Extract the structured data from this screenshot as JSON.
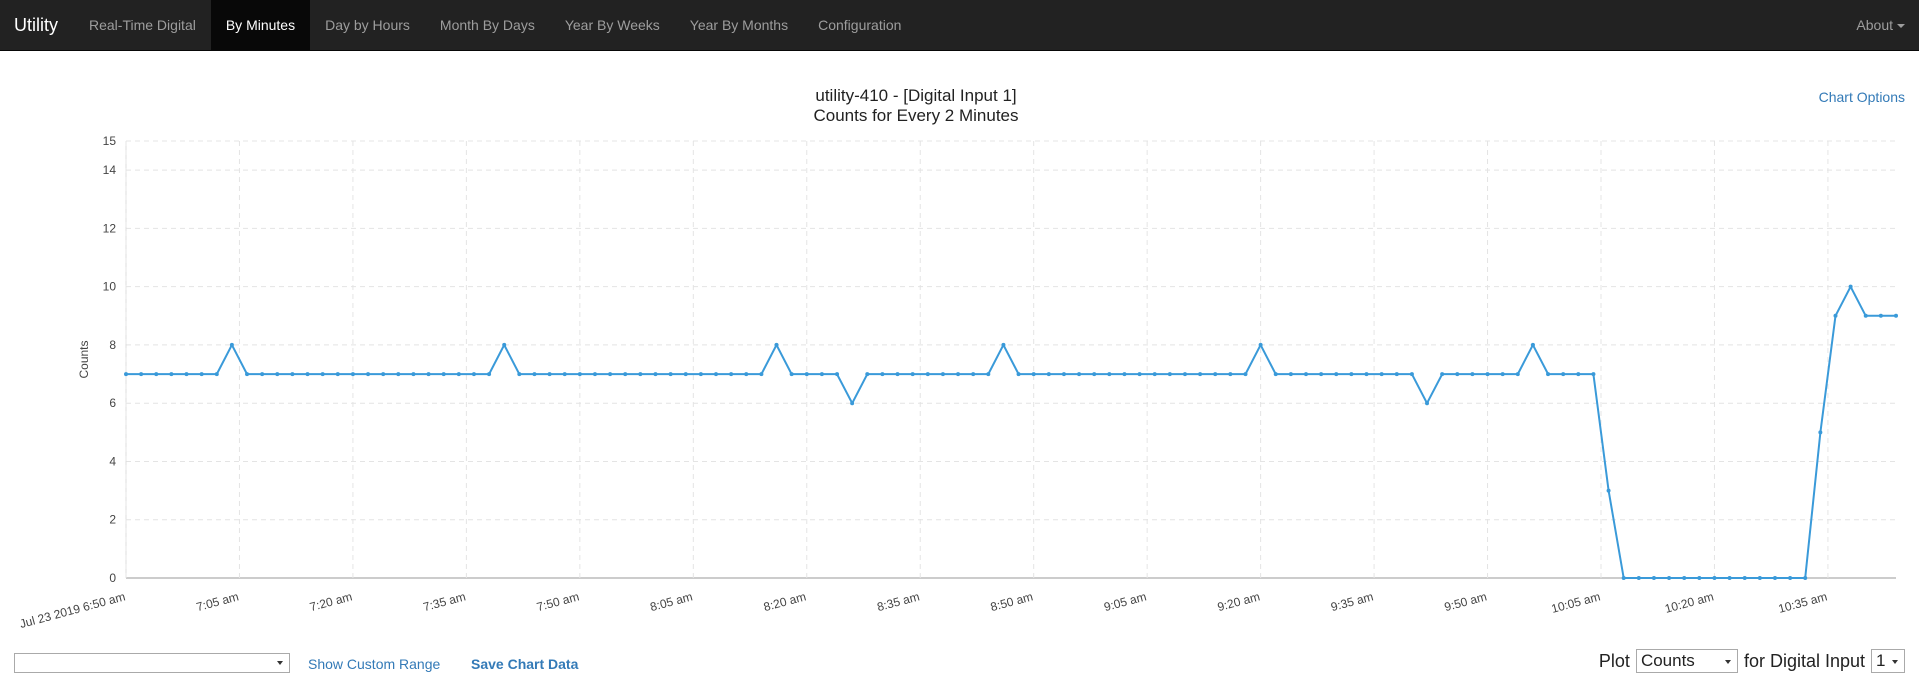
{
  "navbar": {
    "brand": "Utility",
    "items": [
      {
        "label": "Real-Time Digital",
        "active": false
      },
      {
        "label": "By Minutes",
        "active": true
      },
      {
        "label": "Day by Hours",
        "active": false
      },
      {
        "label": "Month By Days",
        "active": false
      },
      {
        "label": "Year By Weeks",
        "active": false
      },
      {
        "label": "Year By Months",
        "active": false
      },
      {
        "label": "Configuration",
        "active": false
      }
    ],
    "about": "About"
  },
  "chart_header": {
    "title": "utility-410 - [Digital Input 1]",
    "subtitle": "Counts for Every 2 Minutes",
    "options_link": "Chart Options"
  },
  "chart_data": {
    "type": "line",
    "title": "utility-410 - [Digital Input 1]",
    "subtitle": "Counts for Every 2 Minutes",
    "xlabel": "",
    "ylabel": "Counts",
    "ylim": [
      0,
      15
    ],
    "yticks": [
      0,
      2,
      4,
      6,
      8,
      10,
      12,
      14,
      15
    ],
    "xticks": [
      "Jul 23 2019 6:50 am",
      "7:05 am",
      "7:20 am",
      "7:35 am",
      "7:50 am",
      "8:05 am",
      "8:20 am",
      "8:35 am",
      "8:50 am",
      "9:05 am",
      "9:20 am",
      "9:35 am",
      "9:50 am",
      "10:05 am",
      "10:20 am",
      "10:35 am"
    ],
    "grid": true,
    "color": "#3a9ad9",
    "x_interval_minutes": 2,
    "x_start": "6:50 am",
    "values": [
      7,
      7,
      7,
      7,
      7,
      7,
      7,
      8,
      7,
      7,
      7,
      7,
      7,
      7,
      7,
      7,
      7,
      7,
      7,
      7,
      7,
      7,
      7,
      7,
      7,
      8,
      7,
      7,
      7,
      7,
      7,
      7,
      7,
      7,
      7,
      7,
      7,
      7,
      7,
      7,
      7,
      7,
      7,
      8,
      7,
      7,
      7,
      7,
      6,
      7,
      7,
      7,
      7,
      7,
      7,
      7,
      7,
      7,
      8,
      7,
      7,
      7,
      7,
      7,
      7,
      7,
      7,
      7,
      7,
      7,
      7,
      7,
      7,
      7,
      7,
      8,
      7,
      7,
      7,
      7,
      7,
      7,
      7,
      7,
      7,
      7,
      6,
      7,
      7,
      7,
      7,
      7,
      7,
      8,
      7,
      7,
      7,
      7,
      3,
      0,
      0,
      0,
      0,
      0,
      0,
      0,
      0,
      0,
      0,
      0,
      0,
      0,
      5,
      9,
      10,
      9,
      9,
      9
    ]
  },
  "footer": {
    "custom_range": "Show Custom Range",
    "save": "Save Chart Data",
    "plot_label": "Plot",
    "plot_value": "Counts",
    "for_label": "for Digital Input",
    "input_value": "1"
  }
}
